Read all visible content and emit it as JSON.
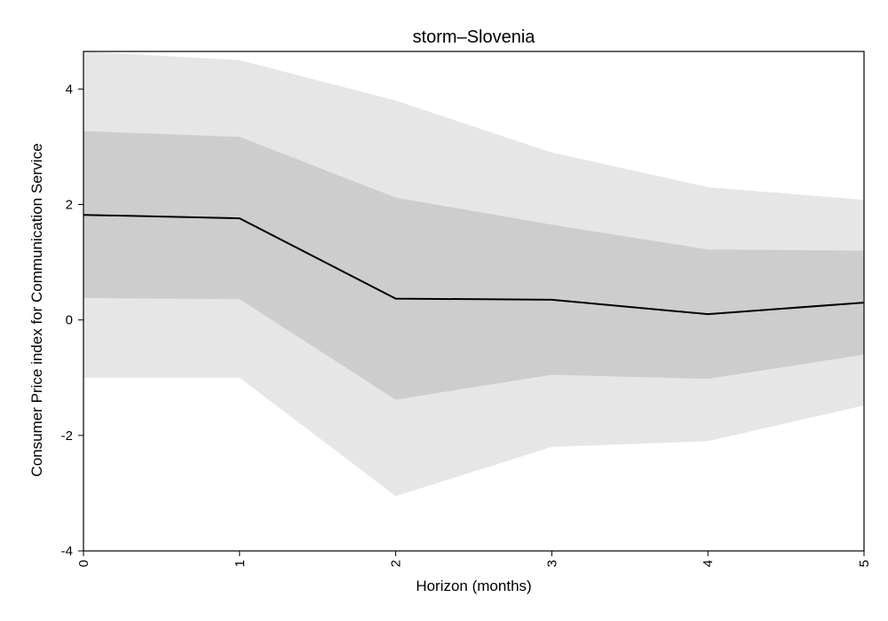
{
  "chart_data": {
    "type": "line",
    "title": "storm–Slovenia",
    "xlabel": "Horizon (months)",
    "ylabel": "Consumer Price index for Communication Service",
    "xlim": [
      0,
      5
    ],
    "ylim": [
      -4,
      4.65
    ],
    "x_ticks": [
      0,
      1,
      2,
      3,
      4,
      5
    ],
    "y_ticks": [
      -4,
      -2,
      0,
      2,
      4
    ],
    "x_tick_labels": [
      "0",
      "1",
      "2",
      "3",
      "4",
      "5"
    ],
    "y_tick_labels": [
      "-4",
      "-2",
      "0",
      "2",
      "4"
    ],
    "grid": false,
    "x": [
      0,
      1,
      2,
      3,
      4,
      5
    ],
    "series": [
      {
        "values": [
          1.82,
          1.76,
          0.37,
          0.35,
          0.1,
          0.3
        ]
      }
    ],
    "bands": [
      {
        "lower": [
          -1.0,
          -1.0,
          -3.05,
          -2.2,
          -2.1,
          -1.48
        ],
        "upper": [
          4.65,
          4.5,
          3.8,
          2.9,
          2.3,
          2.08
        ],
        "color": "#e6e6e6"
      },
      {
        "lower": [
          0.38,
          0.36,
          -1.38,
          -0.95,
          -1.02,
          -0.6
        ],
        "upper": [
          3.27,
          3.17,
          2.12,
          1.65,
          1.22,
          1.2
        ],
        "color": "#cdcdcd"
      }
    ],
    "line_color": "#000000"
  }
}
